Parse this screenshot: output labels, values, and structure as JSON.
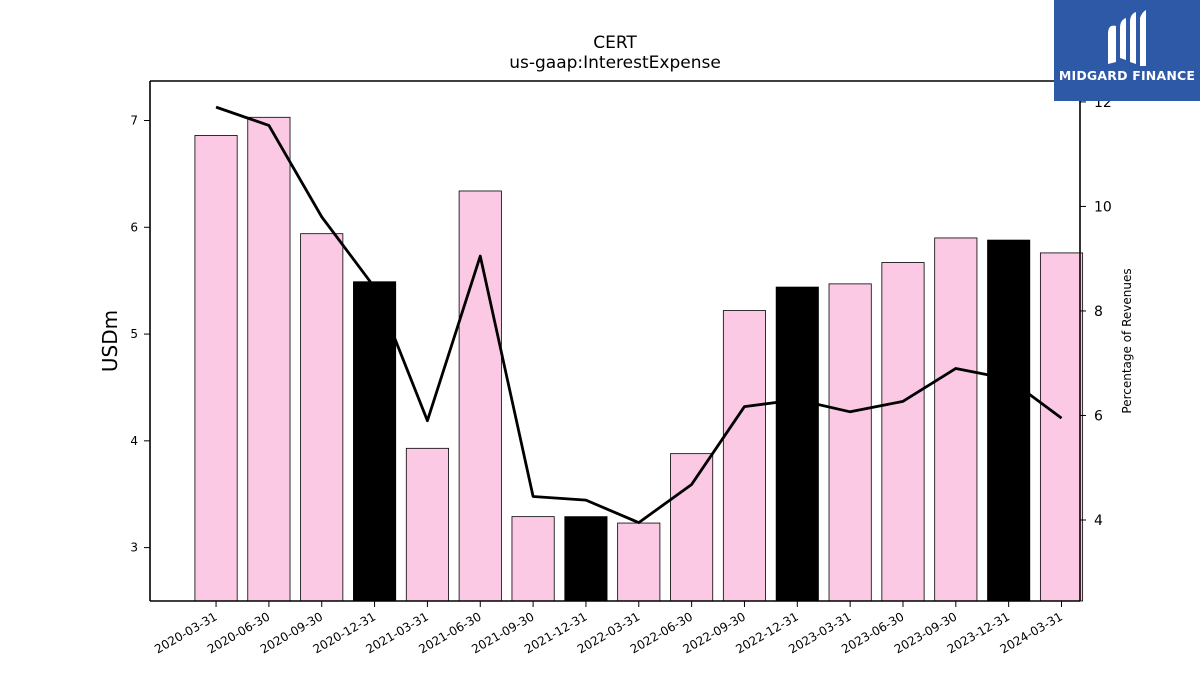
{
  "chart_data": {
    "type": "bar",
    "title": "CERT",
    "subtitle": "us-gaap:InterestExpense",
    "ylabel": "USDm",
    "y2label": "Percentage of Revenues",
    "ylim": [
      2.5,
      7.37
    ],
    "y2lim": [
      2.45,
      12.4
    ],
    "yticks": [
      "3",
      "4",
      "5",
      "6",
      "7"
    ],
    "y2ticks": [
      "4",
      "6",
      "8",
      "10",
      "12"
    ],
    "categories": [
      "2020-03-31",
      "2020-06-30",
      "2020-09-30",
      "2020-12-31",
      "2021-03-31",
      "2021-06-30",
      "2021-09-30",
      "2021-12-31",
      "2022-03-31",
      "2022-06-30",
      "2022-09-30",
      "2022-12-31",
      "2023-03-31",
      "2023-06-30",
      "2023-09-30",
      "2023-12-31",
      "2024-03-31"
    ],
    "series": [
      {
        "kind": "bar",
        "axis": "left",
        "values": [
          6.86,
          7.03,
          5.94,
          5.49,
          3.93,
          6.34,
          3.29,
          3.29,
          3.23,
          3.88,
          5.22,
          5.44,
          5.47,
          5.67,
          5.9,
          5.88,
          5.76
        ],
        "highlight": [
          false,
          false,
          false,
          true,
          false,
          false,
          false,
          true,
          false,
          false,
          false,
          true,
          false,
          false,
          false,
          true,
          false
        ]
      },
      {
        "kind": "line",
        "axis": "right",
        "values": [
          11.9,
          11.55,
          9.8,
          8.45,
          5.9,
          9.05,
          4.45,
          4.38,
          3.95,
          4.68,
          6.17,
          6.3,
          6.07,
          6.27,
          6.9,
          6.7,
          5.95
        ]
      }
    ],
    "colors": {
      "bar": "#fbc9e4",
      "bar_highlight": "#000000",
      "line": "#000000",
      "edge": "#000000"
    },
    "grid": false,
    "legend": "none"
  },
  "logo": {
    "text": "MIDGARD FINANCE",
    "background": "#2d59a6"
  }
}
